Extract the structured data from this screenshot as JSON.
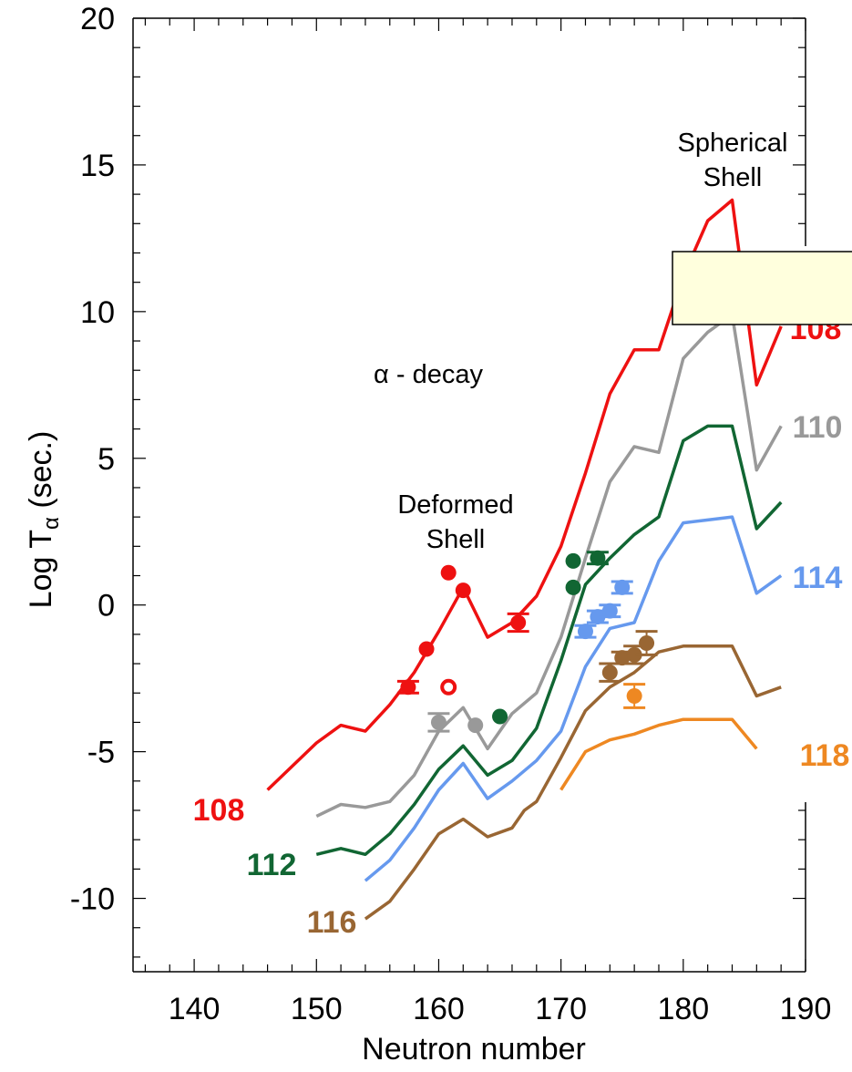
{
  "chart_data": {
    "type": "line",
    "xlabel": "Neutron number",
    "ylabel_main": "Log T",
    "ylabel_sub": "α",
    "ylabel_unit": " (sec.)",
    "xlim": [
      135,
      190
    ],
    "ylim": [
      -12.5,
      20
    ],
    "x_ticks": [
      140,
      150,
      160,
      170,
      180,
      190
    ],
    "y_ticks": [
      20,
      15,
      10,
      5,
      0,
      -5,
      -10
    ],
    "annotations": {
      "alpha_decay": "α - decay",
      "deformed_1": "Deformed",
      "deformed_2": "Shell",
      "spherical_1": "Spherical",
      "spherical_2": "Shell"
    },
    "series": [
      {
        "name": "108",
        "color": "#ee1111",
        "x": [
          146,
          150,
          152,
          154,
          156,
          158,
          160,
          162,
          164,
          166,
          168,
          170,
          172,
          174,
          176,
          178,
          180,
          182,
          184,
          186,
          188
        ],
        "y": [
          -6.3,
          -4.7,
          -4.1,
          -4.3,
          -3.4,
          -2.3,
          -0.9,
          0.6,
          -1.1,
          -0.6,
          0.3,
          2.0,
          4.5,
          7.2,
          8.7,
          8.7,
          11.2,
          13.1,
          13.8,
          7.5,
          9.5
        ]
      },
      {
        "name": "110",
        "color": "#999999",
        "x": [
          150,
          152,
          154,
          156,
          158,
          160,
          162,
          164,
          166,
          168,
          170,
          172,
          174,
          176,
          178,
          180,
          182,
          184,
          186,
          188
        ],
        "y": [
          -7.2,
          -6.8,
          -6.9,
          -6.7,
          -5.8,
          -4.3,
          -3.5,
          -4.9,
          -3.7,
          -3.0,
          -1.1,
          1.6,
          4.2,
          5.4,
          5.2,
          8.4,
          9.3,
          9.9,
          4.6,
          6.1
        ]
      },
      {
        "name": "112",
        "color": "#116633",
        "x": [
          150,
          152,
          154,
          156,
          158,
          160,
          162,
          164,
          166,
          168,
          170,
          172,
          174,
          176,
          178,
          180,
          182,
          184,
          186,
          188
        ],
        "y": [
          -8.5,
          -8.3,
          -8.5,
          -7.8,
          -6.8,
          -5.6,
          -4.8,
          -5.8,
          -5.3,
          -4.2,
          -1.9,
          0.7,
          1.6,
          2.4,
          3.0,
          5.6,
          6.1,
          6.1,
          2.6,
          3.5
        ]
      },
      {
        "name": "114",
        "color": "#6699ee",
        "x": [
          154,
          156,
          158,
          160,
          162,
          164,
          166,
          168,
          170,
          172,
          174,
          176,
          178,
          180,
          182,
          184,
          186,
          188
        ],
        "y": [
          -9.4,
          -8.7,
          -7.6,
          -6.3,
          -5.4,
          -6.6,
          -6.0,
          -5.3,
          -4.3,
          -2.1,
          -0.8,
          -0.6,
          1.5,
          2.8,
          2.9,
          3.0,
          0.4,
          1.0
        ]
      },
      {
        "name": "116",
        "color": "#996633",
        "x": [
          154,
          156,
          158,
          160,
          162,
          164,
          166,
          167,
          168,
          170,
          172,
          174,
          176,
          178,
          180,
          182,
          184,
          186,
          188
        ],
        "y": [
          -10.7,
          -10.1,
          -9.0,
          -7.8,
          -7.3,
          -7.9,
          -7.6,
          -7.0,
          -6.7,
          -5.2,
          -3.6,
          -2.8,
          -2.3,
          -1.6,
          -1.4,
          -1.4,
          -1.4,
          -3.1,
          -2.8
        ]
      },
      {
        "name": "118",
        "color": "#ee8822",
        "x": [
          170,
          172,
          174,
          176,
          178,
          180,
          182,
          184,
          186
        ],
        "y": [
          -6.3,
          -5.0,
          -4.6,
          -4.4,
          -4.1,
          -3.9,
          -3.9,
          -3.9,
          -4.9
        ]
      }
    ],
    "points": [
      {
        "x": 157.5,
        "y": -2.8,
        "s": "108",
        "err": 0.2,
        "open": false
      },
      {
        "x": 159,
        "y": -1.5,
        "s": "108",
        "err": 0,
        "open": false
      },
      {
        "x": 160.8,
        "y": 1.1,
        "s": "108",
        "err": 0,
        "open": false
      },
      {
        "x": 162,
        "y": 0.5,
        "s": "108",
        "err": 0,
        "open": false
      },
      {
        "x": 166.5,
        "y": -0.6,
        "s": "108",
        "err": 0.3,
        "open": false
      },
      {
        "x": 160.8,
        "y": -2.8,
        "s": "108",
        "err": 0,
        "open": true
      },
      {
        "x": 160,
        "y": -4.0,
        "s": "110",
        "err": 0.3,
        "open": false
      },
      {
        "x": 163,
        "y": -4.1,
        "s": "110",
        "err": 0,
        "open": false
      },
      {
        "x": 165,
        "y": -3.8,
        "s": "112",
        "err": 0,
        "open": false
      },
      {
        "x": 171,
        "y": 1.5,
        "s": "112",
        "err": 0,
        "open": false
      },
      {
        "x": 171,
        "y": 0.6,
        "s": "112",
        "err": 0,
        "open": false
      },
      {
        "x": 173,
        "y": 1.6,
        "s": "112",
        "err": 0.2,
        "open": false
      },
      {
        "x": 172,
        "y": -0.9,
        "s": "114",
        "err": 0.2,
        "open": false
      },
      {
        "x": 173,
        "y": -0.4,
        "s": "114",
        "err": 0.2,
        "open": false
      },
      {
        "x": 174,
        "y": -0.2,
        "s": "114",
        "err": 0.2,
        "open": false
      },
      {
        "x": 175,
        "y": 0.6,
        "s": "114",
        "err": 0.2,
        "open": false
      },
      {
        "x": 174,
        "y": -2.3,
        "s": "116",
        "err": 0.3,
        "open": false
      },
      {
        "x": 175,
        "y": -1.8,
        "s": "116",
        "err": 0.2,
        "open": false
      },
      {
        "x": 176,
        "y": -1.7,
        "s": "116",
        "err": 0.3,
        "open": false
      },
      {
        "x": 177,
        "y": -1.3,
        "s": "116",
        "err": 0.4,
        "open": false
      },
      {
        "x": 176,
        "y": -3.1,
        "s": "118",
        "err": 0.4,
        "open": false
      }
    ],
    "grid": false
  }
}
